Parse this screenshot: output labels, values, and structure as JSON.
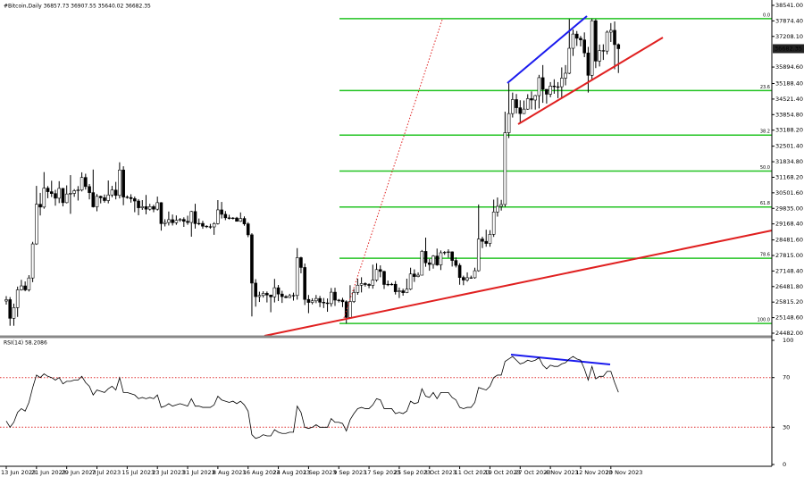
{
  "chart_data": {
    "type": "candlestick",
    "header": "#Bitcoin,Daily  36857.73 36907.55 35640.02 36682.35",
    "categories": [
      "13 Jun 2023",
      null,
      null,
      null,
      null,
      null,
      null,
      null,
      "21 Jun 2023",
      null,
      null,
      null,
      null,
      null,
      null,
      null,
      "29 Jun 2023",
      null,
      null,
      null,
      null,
      null,
      null,
      null,
      "7 Jul 2023",
      null,
      null,
      null,
      null,
      null,
      null,
      null,
      "15 Jul 2023",
      null,
      null,
      null,
      null,
      null,
      null,
      null,
      "23 Jul 2023",
      null,
      null,
      null,
      null,
      null,
      null,
      null,
      "31 Jul 2023",
      null,
      null,
      null,
      null,
      null,
      null,
      null,
      "8 Aug 2023",
      null,
      null,
      null,
      null,
      null,
      null,
      null,
      "16 Aug 2023",
      null,
      null,
      null,
      null,
      null,
      null,
      null,
      "24 Aug 2023",
      null,
      null,
      null,
      null,
      null,
      null,
      null,
      "1 Sep 2023",
      null,
      null,
      null,
      null,
      null,
      null,
      null,
      "9 Sep 2023",
      null,
      null,
      null,
      null,
      null,
      null,
      null,
      "17 Sep 2023",
      null,
      null,
      null,
      null,
      null,
      null,
      null,
      "25 Sep 2023",
      null,
      null,
      null,
      null,
      null,
      null,
      null,
      "3 Oct 2023",
      null,
      null,
      null,
      null,
      null,
      null,
      null,
      "11 Oct 2023",
      null,
      null,
      null,
      null,
      null,
      null,
      null,
      "19 Oct 2023",
      null,
      null,
      null,
      null,
      null,
      null,
      null,
      "27 Oct 2023",
      null,
      null,
      null,
      null,
      null,
      null,
      null,
      "4 Nov 2023",
      null,
      null,
      null,
      null,
      null,
      null,
      null,
      "12 Nov 2023",
      null,
      null,
      null,
      null,
      null,
      null,
      null,
      "20 Nov 2023",
      null,
      null
    ],
    "ohlc": [
      [
        25860,
        26070,
        25710,
        25920
      ],
      [
        25920,
        26030,
        24800,
        25120
      ],
      [
        25120,
        25750,
        24800,
        25580
      ],
      [
        25580,
        26480,
        25180,
        26340
      ],
      [
        26340,
        26770,
        26310,
        26510
      ],
      [
        26510,
        26700,
        26280,
        26340
      ],
      [
        26340,
        26970,
        26270,
        26850
      ],
      [
        26850,
        28400,
        26670,
        28310
      ],
      [
        28310,
        30800,
        28270,
        30010
      ],
      [
        30010,
        30500,
        29530,
        29890
      ],
      [
        29890,
        31390,
        29820,
        30700
      ],
      [
        30700,
        30790,
        30270,
        30550
      ],
      [
        30550,
        31020,
        30320,
        30470
      ],
      [
        30470,
        30630,
        29950,
        30270
      ],
      [
        30270,
        31000,
        30060,
        30690
      ],
      [
        30690,
        30710,
        29920,
        30080
      ],
      [
        30080,
        30820,
        30050,
        30450
      ],
      [
        30450,
        31260,
        29600,
        30480
      ],
      [
        30480,
        30660,
        30330,
        30590
      ],
      [
        30590,
        30790,
        30170,
        30620
      ],
      [
        30620,
        31380,
        30560,
        31160
      ],
      [
        31160,
        31320,
        30640,
        30770
      ],
      [
        30770,
        30880,
        30220,
        30510
      ],
      [
        30510,
        31500,
        29870,
        29900
      ],
      [
        29900,
        30450,
        29710,
        30350
      ],
      [
        30350,
        30380,
        30050,
        30290
      ],
      [
        30290,
        30430,
        30080,
        30170
      ],
      [
        30170,
        31030,
        30050,
        30410
      ],
      [
        30410,
        30800,
        30310,
        30620
      ],
      [
        30620,
        30970,
        30220,
        30390
      ],
      [
        30390,
        31810,
        30260,
        31480
      ],
      [
        31480,
        31640,
        29970,
        30320
      ],
      [
        30320,
        30390,
        30250,
        30300
      ],
      [
        30300,
        30440,
        30080,
        30250
      ],
      [
        30250,
        30340,
        29670,
        30150
      ],
      [
        30150,
        30230,
        29540,
        29860
      ],
      [
        29860,
        30190,
        29770,
        29910
      ],
      [
        29910,
        30410,
        29580,
        29800
      ],
      [
        29800,
        30030,
        29740,
        29910
      ],
      [
        29910,
        29990,
        29670,
        29800
      ],
      [
        29800,
        30340,
        29740,
        30080
      ],
      [
        30080,
        30100,
        28880,
        29180
      ],
      [
        29180,
        29370,
        29060,
        29230
      ],
      [
        29230,
        29700,
        29100,
        29350
      ],
      [
        29350,
        29570,
        29100,
        29220
      ],
      [
        29220,
        29530,
        29130,
        29320
      ],
      [
        29320,
        29420,
        29260,
        29360
      ],
      [
        29360,
        29450,
        29040,
        29280
      ],
      [
        29280,
        29520,
        29130,
        29230
      ],
      [
        29230,
        29730,
        28620,
        29700
      ],
      [
        29700,
        30030,
        28970,
        29180
      ],
      [
        29180,
        29400,
        29110,
        29190
      ],
      [
        29190,
        29300,
        28960,
        29070
      ],
      [
        29070,
        29110,
        28990,
        29050
      ],
      [
        29050,
        29170,
        28960,
        29040
      ],
      [
        29040,
        29240,
        28700,
        29180
      ],
      [
        29180,
        30190,
        29140,
        29770
      ],
      [
        29770,
        30110,
        29400,
        29580
      ],
      [
        29580,
        29720,
        29330,
        29430
      ],
      [
        29430,
        29560,
        29360,
        29400
      ],
      [
        29400,
        29460,
        29360,
        29420
      ],
      [
        29420,
        29470,
        29270,
        29280
      ],
      [
        29280,
        29660,
        29250,
        29400
      ],
      [
        29400,
        29490,
        29090,
        29170
      ],
      [
        29170,
        29240,
        28600,
        28700
      ],
      [
        28700,
        28770,
        25200,
        26630
      ],
      [
        26630,
        26800,
        25620,
        26050
      ],
      [
        26050,
        26260,
        25820,
        26100
      ],
      [
        26100,
        26280,
        26010,
        26190
      ],
      [
        26190,
        26270,
        25800,
        26120
      ],
      [
        26120,
        26130,
        25380,
        26040
      ],
      [
        26040,
        26810,
        25800,
        26430
      ],
      [
        26430,
        26550,
        25860,
        26160
      ],
      [
        26160,
        26300,
        25780,
        26050
      ],
      [
        26050,
        26110,
        25980,
        26010
      ],
      [
        26010,
        26170,
        25990,
        26090
      ],
      [
        26090,
        26220,
        25880,
        26100
      ],
      [
        26100,
        28130,
        25920,
        27720
      ],
      [
        27720,
        27760,
        27050,
        27300
      ],
      [
        27300,
        27470,
        25690,
        25930
      ],
      [
        25930,
        26120,
        25340,
        25800
      ],
      [
        25800,
        25980,
        25720,
        25870
      ],
      [
        25870,
        26120,
        25770,
        25970
      ],
      [
        25970,
        26080,
        25600,
        25810
      ],
      [
        25810,
        25990,
        25560,
        25780
      ],
      [
        25780,
        25970,
        25400,
        25750
      ],
      [
        25750,
        26420,
        25620,
        26240
      ],
      [
        26240,
        26430,
        25650,
        25900
      ],
      [
        25900,
        25950,
        25800,
        25900
      ],
      [
        25900,
        26000,
        25600,
        25830
      ],
      [
        25830,
        25890,
        24900,
        25160
      ],
      [
        25160,
        26540,
        25130,
        25840
      ],
      [
        25840,
        26380,
        25780,
        26230
      ],
      [
        26230,
        26820,
        26130,
        26540
      ],
      [
        26540,
        26880,
        26230,
        26610
      ],
      [
        26610,
        26660,
        26480,
        26570
      ],
      [
        26570,
        26620,
        26410,
        26530
      ],
      [
        26530,
        27420,
        26390,
        26760
      ],
      [
        26760,
        27480,
        26690,
        27210
      ],
      [
        27210,
        27390,
        26880,
        27130
      ],
      [
        27130,
        27160,
        26380,
        26570
      ],
      [
        26570,
        26740,
        26500,
        26580
      ],
      [
        26580,
        26640,
        26530,
        26580
      ],
      [
        26580,
        26720,
        26140,
        26260
      ],
      [
        26260,
        26440,
        25990,
        26300
      ],
      [
        26300,
        26390,
        26090,
        26220
      ],
      [
        26220,
        26820,
        26200,
        26370
      ],
      [
        26370,
        27290,
        26330,
        27020
      ],
      [
        27020,
        27220,
        26680,
        26910
      ],
      [
        26910,
        27090,
        26880,
        26970
      ],
      [
        26970,
        28050,
        26970,
        27990
      ],
      [
        27990,
        28580,
        27330,
        27500
      ],
      [
        27500,
        27670,
        27160,
        27430
      ],
      [
        27430,
        27830,
        27250,
        27790
      ],
      [
        27790,
        28110,
        27370,
        27410
      ],
      [
        27410,
        28030,
        27190,
        27930
      ],
      [
        27930,
        28000,
        27840,
        27950
      ],
      [
        27950,
        28080,
        27720,
        27970
      ],
      [
        27970,
        27990,
        27340,
        27600
      ],
      [
        27600,
        27730,
        27300,
        27390
      ],
      [
        27390,
        27480,
        26560,
        26870
      ],
      [
        26870,
        26950,
        26540,
        26760
      ],
      [
        26760,
        27090,
        26690,
        26860
      ],
      [
        26860,
        26950,
        26820,
        26860
      ],
      [
        26860,
        27290,
        26820,
        27160
      ],
      [
        27160,
        30000,
        27120,
        28520
      ],
      [
        28520,
        28620,
        28130,
        28420
      ],
      [
        28420,
        28920,
        28190,
        28330
      ],
      [
        28330,
        28900,
        28190,
        28720
      ],
      [
        28720,
        30210,
        28610,
        29680
      ],
      [
        29680,
        30300,
        29480,
        29920
      ],
      [
        29920,
        30200,
        29740,
        30000
      ],
      [
        30000,
        33980,
        29900,
        33080
      ],
      [
        33080,
        35200,
        32850,
        33900
      ],
      [
        33900,
        34800,
        33730,
        34500
      ],
      [
        34500,
        34740,
        33900,
        34150
      ],
      [
        34150,
        34470,
        33470,
        33900
      ],
      [
        33900,
        34460,
        33880,
        34090
      ],
      [
        34090,
        34730,
        34060,
        34540
      ],
      [
        34540,
        34850,
        34080,
        34480
      ],
      [
        34480,
        34700,
        34070,
        34670
      ],
      [
        34670,
        35560,
        34120,
        35440
      ],
      [
        35440,
        35980,
        34360,
        34940
      ],
      [
        34940,
        34940,
        34330,
        34730
      ],
      [
        34730,
        35250,
        34600,
        35080
      ],
      [
        35080,
        35370,
        34750,
        35050
      ],
      [
        35050,
        35250,
        34560,
        35050
      ],
      [
        35050,
        35880,
        34540,
        35420
      ],
      [
        35420,
        35980,
        35110,
        35630
      ],
      [
        35630,
        37950,
        35590,
        36700
      ],
      [
        36700,
        37500,
        36370,
        37310
      ],
      [
        37310,
        37440,
        36800,
        37130
      ],
      [
        37130,
        37230,
        36780,
        37060
      ],
      [
        37060,
        37380,
        36320,
        36500
      ],
      [
        36500,
        36760,
        34800,
        35540
      ],
      [
        35540,
        37970,
        35360,
        37880
      ],
      [
        37880,
        37950,
        35850,
        36150
      ],
      [
        36150,
        36860,
        35920,
        36600
      ],
      [
        36600,
        36870,
        36200,
        36580
      ],
      [
        36580,
        37460,
        36440,
        37390
      ],
      [
        37390,
        37780,
        36970,
        37470
      ],
      [
        37470,
        37850,
        35800,
        36857.73
      ],
      [
        36857.73,
        36907.55,
        35640.02,
        36682.35
      ]
    ],
    "up_color": "#ffffff",
    "down_color": "#000000",
    "outline_color": "#000000",
    "ylim": [
      24367,
      38770
    ],
    "yticks": [
      {
        "value": 38541,
        "label": "38541.00"
      },
      {
        "value": 37874.4,
        "label": "37874.40"
      },
      {
        "value": 37208.1,
        "label": "37208.10"
      },
      {
        "value": 35894.6,
        "label": "35894.60"
      },
      {
        "value": 35188.4,
        "label": "35188.40"
      },
      {
        "value": 34521.4,
        "label": "34521.40"
      },
      {
        "value": 33854.8,
        "label": "33854.80"
      },
      {
        "value": 33188.2,
        "label": "33188.20"
      },
      {
        "value": 32501.4,
        "label": "32501.40"
      },
      {
        "value": 31834.8,
        "label": "31834.80"
      },
      {
        "value": 31168.2,
        "label": "31168.20"
      },
      {
        "value": 30501.6,
        "label": "30501.60"
      },
      {
        "value": 29835,
        "label": "29835.00"
      },
      {
        "value": 29168.4,
        "label": "29168.40"
      },
      {
        "value": 28481.6,
        "label": "28481.60"
      },
      {
        "value": 27815,
        "label": "27815.00"
      },
      {
        "value": 27148.4,
        "label": "27148.40"
      },
      {
        "value": 26481.8,
        "label": "26481.80"
      },
      {
        "value": 25815.2,
        "label": "25815.20"
      },
      {
        "value": 25148.6,
        "label": "25148.60"
      },
      {
        "value": 24482,
        "label": "24482.00"
      }
    ],
    "last_price": {
      "value": 36682.35,
      "label": "36682.35"
    },
    "fibonacci": {
      "color": "#22c322",
      "levels": [
        {
          "value": 37970,
          "label": "0.0"
        },
        {
          "value": 34886,
          "label": "23.6"
        },
        {
          "value": 32977,
          "label": "38.2"
        },
        {
          "value": 31435,
          "label": "50.0"
        },
        {
          "value": 29893,
          "label": "61.8"
        },
        {
          "value": 27697,
          "label": "78.6"
        },
        {
          "value": 24900,
          "label": "100.0"
        }
      ]
    },
    "rsi": {
      "type": "line",
      "label": "RSI(14) 58.2086",
      "color": "#000000",
      "ylim": [
        0,
        100
      ],
      "yticks": [
        0,
        30,
        70,
        100
      ],
      "levels": [
        30,
        70
      ],
      "level_color": "#e03030",
      "values": [
        35,
        30,
        34,
        42,
        45,
        43,
        50,
        62,
        72,
        70,
        73,
        71,
        70,
        68,
        70,
        65,
        67,
        67,
        68,
        68,
        71,
        66,
        63,
        56,
        60,
        59,
        58,
        61,
        63,
        60,
        70,
        58,
        58,
        57,
        56,
        53,
        54,
        53,
        54,
        53,
        56,
        46,
        47,
        49,
        47,
        48,
        49,
        48,
        47,
        53,
        47,
        47,
        46,
        46,
        46,
        48,
        55,
        52,
        51,
        50,
        51,
        49,
        51,
        48,
        43,
        24,
        21,
        22,
        24,
        23,
        23,
        28,
        26,
        25,
        25,
        26,
        26,
        47,
        42,
        30,
        29,
        30,
        32,
        30,
        30,
        30,
        37,
        34,
        34,
        33,
        27,
        36,
        41,
        45,
        46,
        45,
        45,
        48,
        53,
        52,
        45,
        45,
        45,
        41,
        42,
        41,
        43,
        51,
        49,
        50,
        61,
        55,
        54,
        58,
        53,
        58,
        58,
        58,
        54,
        52,
        46,
        45,
        46,
        46,
        50,
        62,
        61,
        60,
        63,
        70,
        72,
        72,
        83,
        85,
        87,
        84,
        81,
        82,
        84,
        83,
        84,
        86,
        80,
        77,
        80,
        79,
        79,
        81,
        82,
        85,
        87,
        85,
        84,
        77,
        68,
        79,
        69,
        71,
        71,
        75,
        75,
        66,
        58.2086
      ]
    }
  }
}
